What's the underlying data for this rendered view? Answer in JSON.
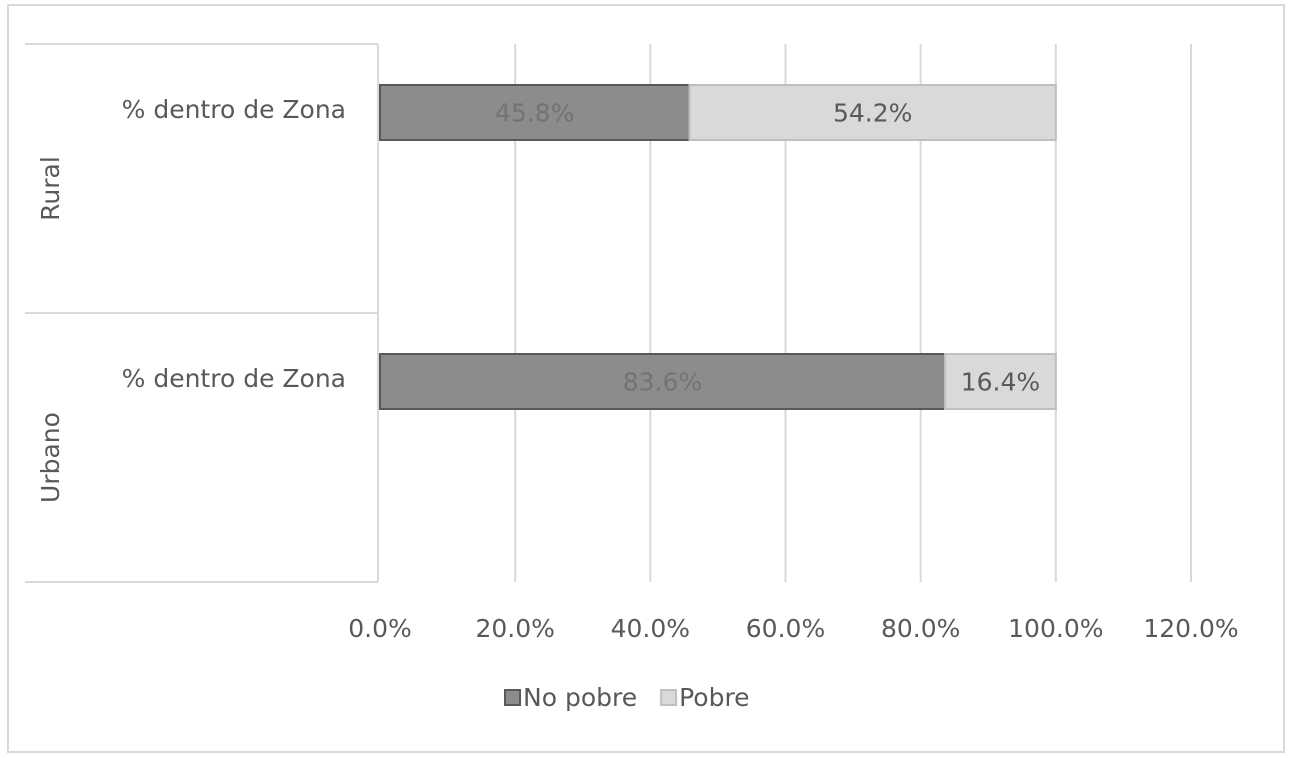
{
  "chart_data": {
    "type": "stacked-bar-horizontal",
    "groups": [
      "Rural",
      "Urbano"
    ],
    "categories": [
      "% dentro de Zona",
      "% dentro de Zona"
    ],
    "series": [
      {
        "name": "No pobre",
        "color": "#8c8c8c",
        "border": "#595959",
        "values": [
          45.8,
          83.6
        ],
        "value_labels": [
          "45.8%",
          "83.6%"
        ]
      },
      {
        "name": "Pobre",
        "color": "#d9d9d9",
        "border": "#bfbfbf",
        "values": [
          54.2,
          16.4
        ],
        "value_labels": [
          "54.2%",
          "16.4%"
        ]
      }
    ],
    "xlim": [
      0,
      120
    ],
    "xticks": [
      {
        "value": 0,
        "label": "0.0%"
      },
      {
        "value": 20,
        "label": "20.0%"
      },
      {
        "value": 40,
        "label": "40.0%"
      },
      {
        "value": 60,
        "label": "60.0%"
      },
      {
        "value": 80,
        "label": "80.0%"
      },
      {
        "value": 100,
        "label": "100.0%"
      },
      {
        "value": 120,
        "label": "120.0%"
      }
    ],
    "grid": true,
    "legend": "bottom"
  }
}
